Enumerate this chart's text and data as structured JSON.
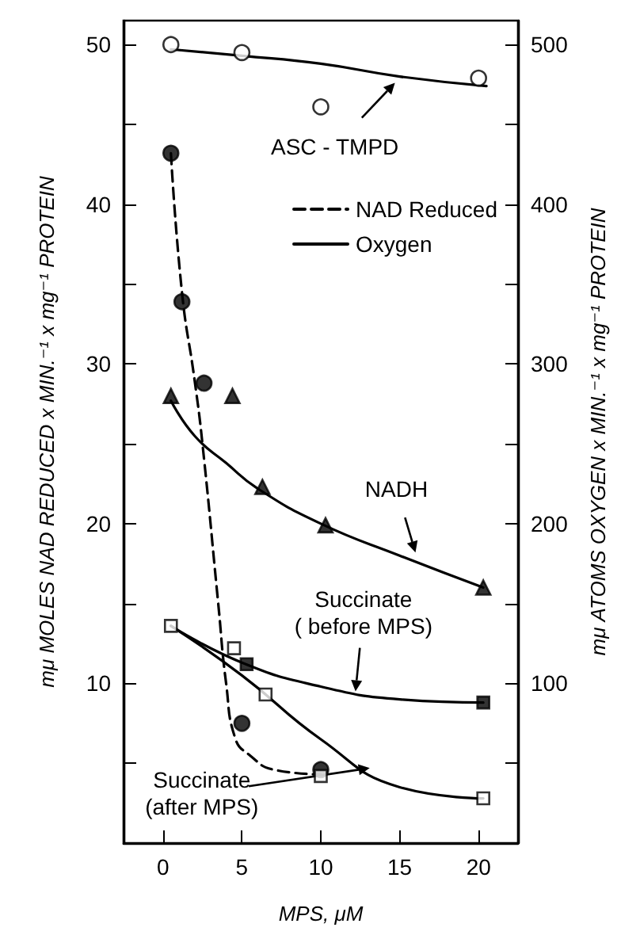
{
  "chart_data": {
    "type": "scatter",
    "xlabel": "MPS, μM",
    "ylabel": "mμ MOLES NAD REDUCED x MIN.⁻¹ x mg⁻¹ PROTEIN",
    "y2label": "mμ ATOMS OXYGEN x MIN.⁻¹ x mg⁻¹ PROTEIN",
    "xlim": [
      -2.5,
      22.5
    ],
    "xticks": [
      0,
      5,
      10,
      15,
      20
    ],
    "ylim": [
      0,
      51.5
    ],
    "yticks": [
      {
        "value": 5,
        "label": null
      },
      10,
      {
        "value": 15,
        "label": null
      },
      20,
      {
        "value": 25,
        "label": null
      },
      30,
      {
        "value": 35,
        "label": null
      },
      40,
      {
        "value": 45,
        "label": null
      },
      50
    ],
    "y2lim": [
      0,
      515
    ],
    "y2ticks": [
      {
        "value": 50,
        "label": null
      },
      100,
      {
        "value": 150,
        "label": null
      },
      200,
      {
        "value": 250,
        "label": null
      },
      300,
      {
        "value": 350,
        "label": null
      },
      400,
      {
        "value": 450,
        "label": null
      },
      500
    ],
    "grid": false,
    "legend": "top right",
    "series": [
      {
        "axis": "y2",
        "marker": "circle",
        "color": "#ffffff",
        "x": [
          0.5,
          5,
          10,
          20
        ],
        "values": [
          500,
          495,
          461,
          479
        ]
      },
      {
        "type": "line",
        "axis": "y2",
        "marker": "none",
        "line_style": "solid",
        "color": "#000000",
        "x": [
          0.5,
          5,
          10,
          15,
          20.5
        ],
        "values": [
          497,
          493,
          488,
          480,
          474
        ]
      },
      {
        "marker": "circle",
        "color": "#000000",
        "x": [
          0.5,
          1.2,
          2.6,
          5,
          10
        ],
        "values": [
          43.2,
          33.9,
          28.8,
          7.5,
          4.6
        ]
      },
      {
        "type": "line",
        "name": "NAD Reduced",
        "marker": "none",
        "line_style": "dashed",
        "color": "#000000",
        "x": [
          0.5,
          1.2,
          2,
          2.5,
          3.5,
          4,
          4.6,
          5.5,
          7,
          10
        ],
        "values": [
          43.2,
          34.5,
          29,
          25,
          15,
          10,
          6.5,
          5.5,
          4.6,
          4.3
        ]
      },
      {
        "axis": "y2",
        "marker": "triangle",
        "color": "#000000",
        "x": [
          0.5,
          4.4,
          6.3,
          10.3,
          20.3
        ],
        "values": [
          280,
          280,
          223,
          199,
          160
        ]
      },
      {
        "type": "line",
        "name": "Oxygen",
        "axis": "y2",
        "marker": "none",
        "line_style": "solid",
        "color": "#000000",
        "x": [
          0.5,
          2,
          4,
          6,
          10,
          15,
          20.3
        ],
        "values": [
          277,
          255,
          238,
          222,
          200,
          180,
          160
        ]
      },
      {
        "axis": "y2",
        "marker": "square",
        "color": "#000000",
        "x": [
          5.3,
          20.3
        ],
        "values": [
          112,
          88
        ]
      },
      {
        "type": "line",
        "axis": "y2",
        "marker": "none",
        "line_style": "solid",
        "color": "#000000",
        "x": [
          0.5,
          5,
          10,
          15,
          20.3
        ],
        "values": [
          136,
          113,
          98,
          90,
          88
        ]
      },
      {
        "axis": "y2",
        "marker": "square",
        "color": "#ffffff",
        "x": [
          0.5,
          4.5,
          6.5,
          10,
          20.3
        ],
        "values": [
          136,
          122,
          93,
          42,
          28
        ]
      },
      {
        "type": "line",
        "axis": "y2",
        "marker": "none",
        "line_style": "solid",
        "color": "#000000",
        "x": [
          0.5,
          5,
          10,
          15,
          20.3
        ],
        "values": [
          136,
          105,
          65,
          35,
          28
        ]
      }
    ],
    "annotations": [
      {
        "text": "ASC - TMPD",
        "x": 14.7,
        "y": 47.6
      },
      {
        "text": "NADH",
        "x": 16,
        "y": 18.2
      },
      {
        "text": "Succinate\n( before MPS)",
        "x": 12.2,
        "y": 9.5
      },
      {
        "text": "Succinate\n(after MPS)",
        "x": 13.1,
        "y": 4.7
      }
    ]
  }
}
